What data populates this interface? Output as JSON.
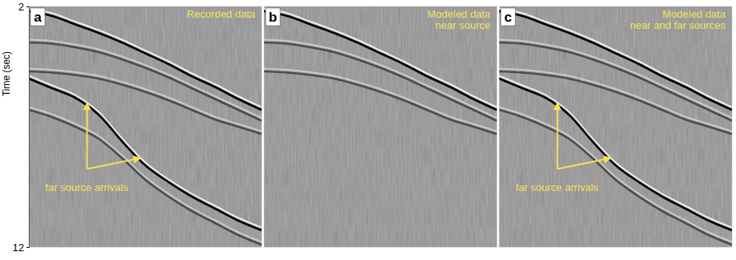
{
  "chart_data": [
    {
      "type": "line",
      "label": "a",
      "title": [
        "Recorded data"
      ],
      "xlim": [
        0,
        1
      ],
      "ylim": [
        2,
        12
      ],
      "yticks": [
        2,
        12
      ],
      "y_label": "Time (sec)",
      "tick_labels": "y",
      "x": [
        0,
        0.1,
        0.2,
        0.3,
        0.4,
        0.5,
        0.6,
        0.7,
        0.8,
        0.9,
        1
      ],
      "series": [
        {
          "color": "#000000",
          "values": [
            2.2,
            2.4,
            2.75,
            3.1,
            3.5,
            3.95,
            4.4,
            4.9,
            5.35,
            5.85,
            6.3
          ]
        },
        {
          "color": "#2b2b2b",
          "values": [
            3.5,
            3.55,
            3.7,
            3.9,
            4.2,
            4.55,
            4.95,
            5.4,
            5.85,
            6.3,
            6.75
          ]
        },
        {
          "color": "#2b2b2b",
          "values": [
            4.7,
            4.75,
            4.85,
            5.0,
            5.25,
            5.55,
            5.9,
            6.3,
            6.7,
            7.0,
            7.3
          ]
        },
        {
          "color": "#000000",
          "values": [
            5.0,
            5.4,
            5.8,
            6.5,
            7.6,
            8.6,
            9.3,
            9.9,
            10.4,
            10.9,
            11.3
          ]
        },
        {
          "color": "#2b2b2b",
          "values": [
            6.3,
            6.6,
            7.0,
            7.5,
            8.3,
            9.2,
            9.9,
            10.5,
            11.0,
            11.5,
            11.9
          ]
        }
      ],
      "annotations": [
        {
          "text": "far source arrivals",
          "x": 0.07,
          "y": 9.55,
          "arrows": [
            {
              "from": [
                0.25,
                8.75
              ],
              "to": [
                0.25,
                6.0
              ]
            },
            {
              "from": [
                0.25,
                8.75
              ],
              "to": [
                0.48,
                8.3
              ]
            }
          ]
        }
      ]
    },
    {
      "type": "line",
      "label": "b",
      "title": [
        "Modeled data",
        "near source"
      ],
      "xlim": [
        0,
        1
      ],
      "ylim": [
        2,
        12
      ],
      "tick_labels": false,
      "x": [
        0,
        0.1,
        0.2,
        0.3,
        0.4,
        0.5,
        0.6,
        0.7,
        0.8,
        0.9,
        1
      ],
      "series": [
        {
          "color": "#000000",
          "values": [
            2.2,
            2.4,
            2.75,
            3.1,
            3.5,
            3.95,
            4.4,
            4.9,
            5.35,
            5.85,
            6.3
          ]
        },
        {
          "color": "#2b2b2b",
          "values": [
            3.5,
            3.55,
            3.7,
            3.9,
            4.2,
            4.55,
            4.95,
            5.4,
            5.85,
            6.3,
            6.75
          ]
        },
        {
          "color": "#2b2b2b",
          "values": [
            4.7,
            4.75,
            4.85,
            5.0,
            5.25,
            5.55,
            5.9,
            6.3,
            6.7,
            7.0,
            7.3
          ]
        }
      ]
    },
    {
      "type": "line",
      "label": "c",
      "title": [
        "Modeled data",
        "near and far sources"
      ],
      "xlim": [
        0,
        1
      ],
      "ylim": [
        2,
        12
      ],
      "tick_labels": false,
      "x": [
        0,
        0.1,
        0.2,
        0.3,
        0.4,
        0.5,
        0.6,
        0.7,
        0.8,
        0.9,
        1
      ],
      "series": [
        {
          "color": "#000000",
          "values": [
            2.2,
            2.4,
            2.75,
            3.1,
            3.5,
            3.95,
            4.4,
            4.9,
            5.35,
            5.85,
            6.3
          ]
        },
        {
          "color": "#2b2b2b",
          "values": [
            3.5,
            3.55,
            3.7,
            3.9,
            4.2,
            4.55,
            4.95,
            5.4,
            5.85,
            6.3,
            6.75
          ]
        },
        {
          "color": "#2b2b2b",
          "values": [
            4.7,
            4.75,
            4.85,
            5.0,
            5.25,
            5.55,
            5.9,
            6.3,
            6.7,
            7.0,
            7.3
          ]
        },
        {
          "color": "#000000",
          "values": [
            5.0,
            5.4,
            5.8,
            6.5,
            7.6,
            8.6,
            9.3,
            9.9,
            10.4,
            10.9,
            11.3
          ]
        },
        {
          "color": "#2b2b2b",
          "values": [
            6.3,
            6.6,
            7.0,
            7.5,
            8.3,
            9.2,
            9.9,
            10.5,
            11.0,
            11.5,
            11.9
          ]
        }
      ],
      "annotations": [
        {
          "text": "far source arrivals",
          "x": 0.07,
          "y": 9.55,
          "arrows": [
            {
              "from": [
                0.25,
                8.75
              ],
              "to": [
                0.25,
                6.0
              ]
            },
            {
              "from": [
                0.25,
                8.75
              ],
              "to": [
                0.48,
                8.3
              ]
            }
          ]
        }
      ]
    }
  ]
}
